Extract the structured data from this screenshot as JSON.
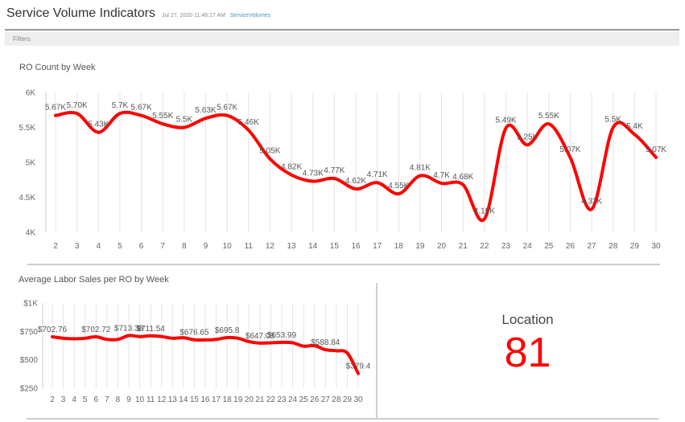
{
  "header": {
    "title": "Service Volume Indicators",
    "timestamp": "Jul 27, 2020 11:48:17 AM",
    "tag": "ServiceVolumes"
  },
  "filters": {
    "label": "Filters"
  },
  "colors": {
    "series": "#ff0000",
    "grid": "#e4e4e4",
    "axis_text": "#666666"
  },
  "chart_data": [
    {
      "type": "line",
      "title": "RO Count by Week",
      "x": [
        2,
        3,
        4,
        5,
        6,
        7,
        8,
        9,
        10,
        11,
        12,
        13,
        14,
        15,
        16,
        17,
        18,
        19,
        20,
        21,
        22,
        23,
        24,
        25,
        26,
        27,
        28,
        29,
        30
      ],
      "series": [
        {
          "values": [
            5670,
            5700,
            5430,
            5700,
            5670,
            5550,
            5500,
            5630,
            5670,
            5460,
            5050,
            4820,
            4730,
            4770,
            4620,
            4710,
            4550,
            4810,
            4700,
            4680,
            4190,
            5490,
            5250,
            5550,
            5070,
            4330,
            5500,
            5400,
            5070
          ]
        }
      ],
      "data_labels": [
        "5.67K",
        "5.70K",
        "5.43K",
        "5.7K",
        "5.67K",
        "5.55K",
        "5.5K",
        "5.63K",
        "5.67K",
        "5.46K",
        "5.05K",
        "4.82K",
        "4.73K",
        "4.77K",
        "4.62K",
        "4.71K",
        "4.55K",
        "4.81K",
        "4.7K",
        "4.68K",
        "4.19K",
        "5.49K",
        "5.25K",
        "5.55K",
        "5.07K",
        "4.33K",
        "5.5K",
        "5.4K",
        "5.07K"
      ],
      "ylim": [
        4000,
        6000
      ],
      "y_ticks": [
        4000,
        4500,
        5000,
        5500,
        6000
      ],
      "y_tick_labels": [
        "4K",
        "4.5K",
        "5K",
        "5.5K",
        "6K"
      ],
      "grid": "vertical"
    },
    {
      "type": "line",
      "title": "Average Labor Sales per RO by Week",
      "x": [
        2,
        3,
        4,
        5,
        6,
        7,
        8,
        9,
        10,
        11,
        12,
        13,
        14,
        15,
        16,
        17,
        18,
        19,
        20,
        21,
        22,
        23,
        24,
        25,
        26,
        27,
        28,
        29,
        30
      ],
      "series": [
        {
          "values": [
            702.76,
            690,
            685,
            690,
            702.72,
            680,
            680,
            713.38,
            705,
            711.54,
            705,
            690,
            695,
            676.65,
            675,
            680,
            695.8,
            690,
            660,
            647.08,
            650,
            653.99,
            650,
            620,
            625,
            588.84,
            580,
            560,
            379.4
          ]
        }
      ],
      "data_labels": [
        "$702.76",
        "",
        "",
        "",
        "$702.72",
        "",
        "",
        "$713.38",
        "",
        "$711.54",
        "",
        "",
        "",
        "$676.65",
        "",
        "",
        "$695.8",
        "",
        "",
        "$647.08",
        "",
        "$653.99",
        "",
        "",
        "",
        "$588.84",
        "",
        "",
        "$379.4"
      ],
      "ylim": [
        250,
        1000
      ],
      "y_ticks": [
        250,
        500,
        750,
        1000
      ],
      "y_tick_labels": [
        "$250",
        "$500",
        "$750",
        "$1K"
      ],
      "grid": "vertical"
    }
  ],
  "kpi": {
    "label": "Location",
    "value": "81"
  }
}
